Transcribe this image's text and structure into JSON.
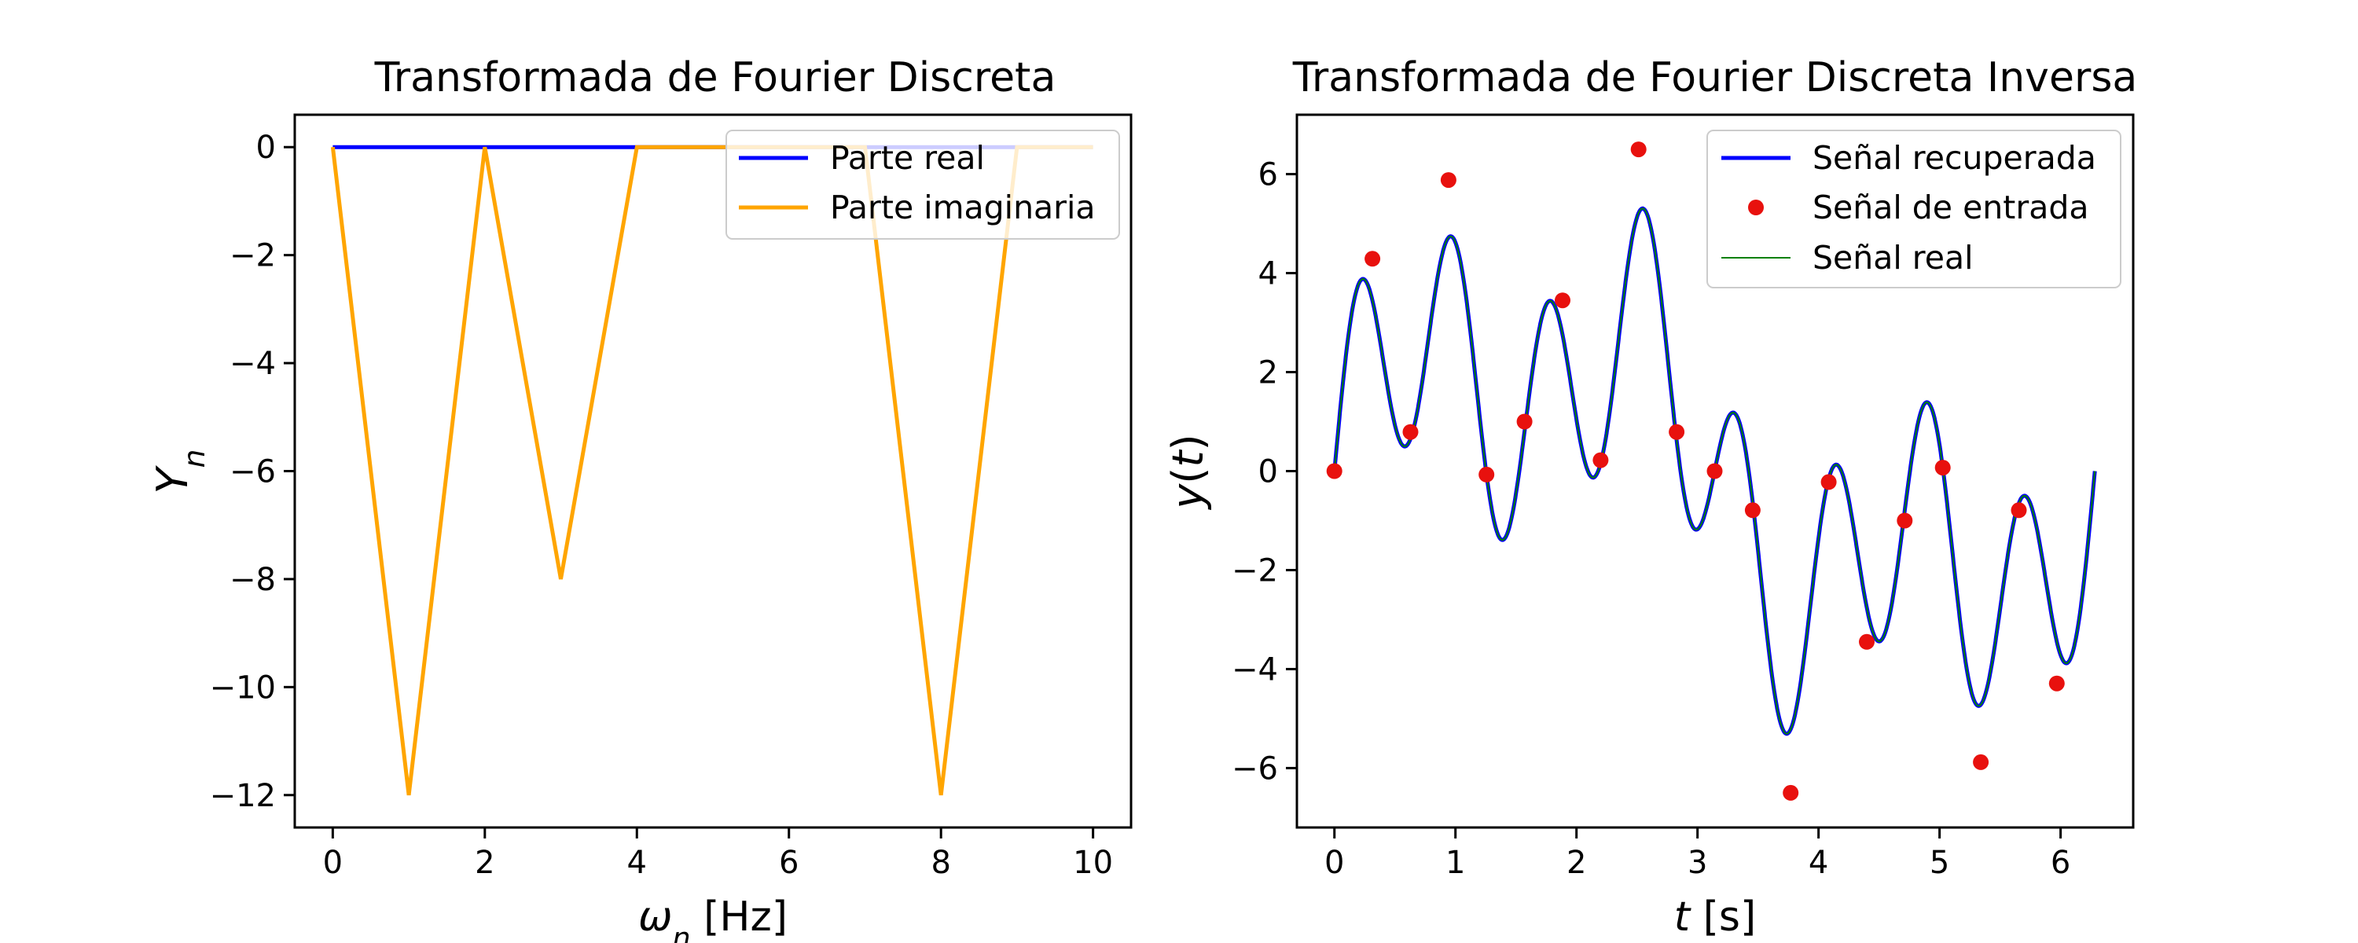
{
  "chart_data": [
    {
      "type": "line",
      "title": "Transformada de Fourier Discreta",
      "xlabel": "ω_n [Hz]",
      "ylabel": "Y_n",
      "xlim": [
        -0.5,
        10.5
      ],
      "ylim": [
        -12.6,
        0.6
      ],
      "xticks": [
        0,
        2,
        4,
        6,
        8,
        10
      ],
      "yticks": [
        0,
        -2,
        -4,
        -6,
        -8,
        -10,
        -12
      ],
      "grid": false,
      "legend_position": "top-right",
      "x": [
        0,
        1,
        2,
        3,
        4,
        5,
        6,
        7,
        8,
        9,
        10
      ],
      "series": [
        {
          "name": "Parte real",
          "color": "#0000ff",
          "values": [
            0,
            0,
            0,
            0,
            0,
            0,
            0,
            0,
            0,
            0,
            0
          ]
        },
        {
          "name": "Parte imaginaria",
          "color": "#ffa500",
          "values": [
            0,
            -12,
            0,
            -8,
            0,
            0,
            0,
            0,
            -12,
            0,
            0
          ]
        }
      ]
    },
    {
      "type": "line",
      "title": "Transformada de Fourier Discreta Inversa",
      "xlabel": "t [s]",
      "ylabel": "y(t)",
      "xlim": [
        -0.31,
        6.6
      ],
      "ylim": [
        -7.2,
        7.2
      ],
      "xticks": [
        0,
        1,
        2,
        3,
        4,
        5,
        6
      ],
      "yticks": [
        6,
        4,
        2,
        0,
        -2,
        -4,
        -6
      ],
      "grid": false,
      "legend_position": "top-right",
      "model": {
        "terms": [
          {
            "coef": 2.4,
            "freq": 1
          },
          {
            "coef": 1.6,
            "freq": 3
          },
          {
            "coef": 2.4,
            "freq": 8
          }
        ],
        "t_range": [
          0,
          6.2832
        ]
      },
      "series": [
        {
          "name": "Señal recuperada",
          "color": "#0000ff",
          "kind": "line"
        },
        {
          "name": "Señal de entrada",
          "color": "#ff0000",
          "kind": "markers",
          "t": [
            0,
            0.3142,
            0.6283,
            0.9425,
            1.2566,
            1.5708,
            1.885,
            2.1991,
            2.5133,
            2.8274,
            3.1416,
            3.4558,
            3.7699,
            4.0841,
            4.3982,
            4.7124,
            5.0265,
            5.3407,
            5.6549,
            5.969
          ],
          "y": [
            0,
            4.29,
            0.79,
            5.88,
            -0.07,
            1.0,
            3.45,
            0.22,
            6.5,
            0.79,
            0,
            -0.79,
            -6.5,
            -0.22,
            -3.45,
            -1.0,
            0.07,
            -5.88,
            -0.79,
            -4.29
          ]
        },
        {
          "name": "Señal real",
          "color": "#008000",
          "kind": "line"
        }
      ]
    }
  ]
}
